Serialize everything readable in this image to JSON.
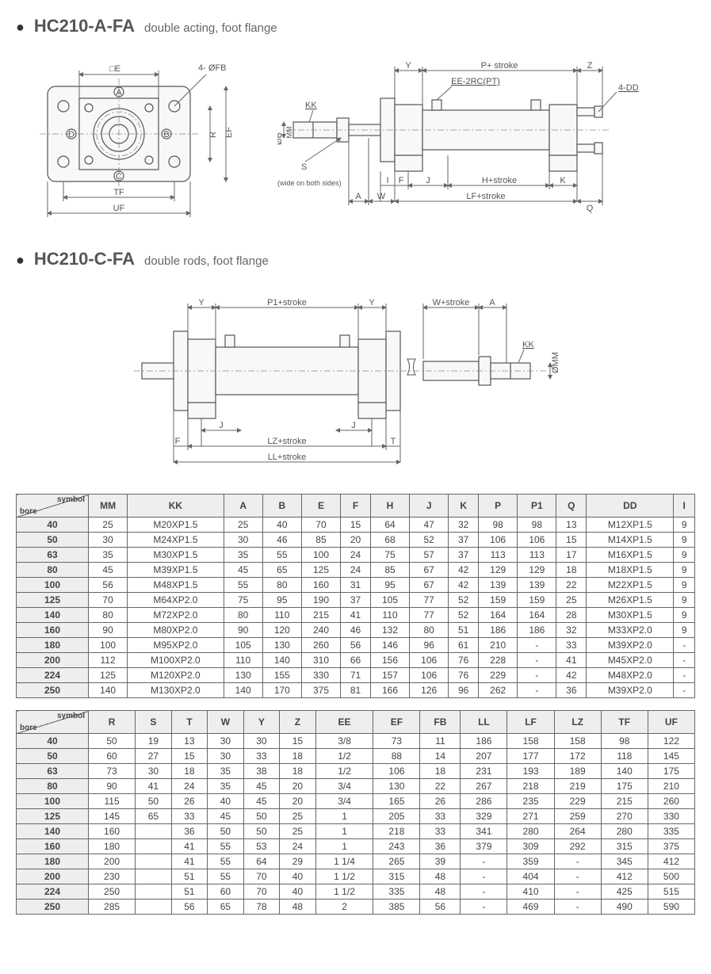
{
  "section1": {
    "model": "HC210-A-FA",
    "subtitle": "double acting, foot flange",
    "diag1_labels": {
      "E": "□E",
      "FB": "4- ØFB",
      "A": "A",
      "B": "B",
      "C": "C",
      "D": "D",
      "R": "R",
      "EF": "EF",
      "TF": "TF",
      "UF": "UF"
    },
    "diag2_labels": {
      "Y": "Y",
      "P": "P+ stroke",
      "Z": "Z",
      "EE": "EE-2RC(PT)",
      "DD": "4-DD",
      "KK": "KK",
      "B": "ØB",
      "MM": "MM",
      "S": "S",
      "wide": "(wide on both sides)",
      "I": "I",
      "F": "F",
      "J": "J",
      "H": "H+stroke",
      "K": "K",
      "A": "A",
      "W": "W",
      "LF": "LF+stroke",
      "Q": "Q"
    }
  },
  "section2": {
    "model": "HC210-C-FA",
    "subtitle": "double rods, foot flange",
    "labels": {
      "Y": "Y",
      "P1": "P1+stroke",
      "W": "W+stroke",
      "A": "A",
      "KK": "KK",
      "MM": "ØMM",
      "J": "J",
      "F": "F",
      "T": "T",
      "LZ": "LZ+stroke",
      "LL": "LL+stroke"
    }
  },
  "table1": {
    "header_top": "symbol",
    "header_bot": "bore",
    "columns": [
      "MM",
      "KK",
      "A",
      "B",
      "E",
      "F",
      "H",
      "J",
      "K",
      "P",
      "P1",
      "Q",
      "DD",
      "I"
    ],
    "rows": [
      [
        "40",
        "25",
        "M20XP1.5",
        "25",
        "40",
        "70",
        "15",
        "64",
        "47",
        "32",
        "98",
        "98",
        "13",
        "M12XP1.5",
        "9"
      ],
      [
        "50",
        "30",
        "M24XP1.5",
        "30",
        "46",
        "85",
        "20",
        "68",
        "52",
        "37",
        "106",
        "106",
        "15",
        "M14XP1.5",
        "9"
      ],
      [
        "63",
        "35",
        "M30XP1.5",
        "35",
        "55",
        "100",
        "24",
        "75",
        "57",
        "37",
        "113",
        "113",
        "17",
        "M16XP1.5",
        "9"
      ],
      [
        "80",
        "45",
        "M39XP1.5",
        "45",
        "65",
        "125",
        "24",
        "85",
        "67",
        "42",
        "129",
        "129",
        "18",
        "M18XP1.5",
        "9"
      ],
      [
        "100",
        "56",
        "M48XP1.5",
        "55",
        "80",
        "160",
        "31",
        "95",
        "67",
        "42",
        "139",
        "139",
        "22",
        "M22XP1.5",
        "9"
      ],
      [
        "125",
        "70",
        "M64XP2.0",
        "75",
        "95",
        "190",
        "37",
        "105",
        "77",
        "52",
        "159",
        "159",
        "25",
        "M26XP1.5",
        "9"
      ],
      [
        "140",
        "80",
        "M72XP2.0",
        "80",
        "110",
        "215",
        "41",
        "110",
        "77",
        "52",
        "164",
        "164",
        "28",
        "M30XP1.5",
        "9"
      ],
      [
        "160",
        "90",
        "M80XP2.0",
        "90",
        "120",
        "240",
        "46",
        "132",
        "80",
        "51",
        "186",
        "186",
        "32",
        "M33XP2.0",
        "9"
      ],
      [
        "180",
        "100",
        "M95XP2.0",
        "105",
        "130",
        "260",
        "56",
        "146",
        "96",
        "61",
        "210",
        "-",
        "33",
        "M39XP2.0",
        "-"
      ],
      [
        "200",
        "112",
        "M100XP2.0",
        "110",
        "140",
        "310",
        "66",
        "156",
        "106",
        "76",
        "228",
        "-",
        "41",
        "M45XP2.0",
        "-"
      ],
      [
        "224",
        "125",
        "M120XP2.0",
        "130",
        "155",
        "330",
        "71",
        "157",
        "106",
        "76",
        "229",
        "-",
        "42",
        "M48XP2.0",
        "-"
      ],
      [
        "250",
        "140",
        "M130XP2.0",
        "140",
        "170",
        "375",
        "81",
        "166",
        "126",
        "96",
        "262",
        "-",
        "36",
        "M39XP2.0",
        "-"
      ]
    ]
  },
  "table2": {
    "header_top": "symbol",
    "header_bot": "bore",
    "columns": [
      "R",
      "S",
      "T",
      "W",
      "Y",
      "Z",
      "EE",
      "EF",
      "FB",
      "LL",
      "LF",
      "LZ",
      "TF",
      "UF"
    ],
    "rows": [
      [
        "40",
        "50",
        "19",
        "13",
        "30",
        "30",
        "15",
        "3/8",
        "73",
        "11",
        "186",
        "158",
        "158",
        "98",
        "122"
      ],
      [
        "50",
        "60",
        "27",
        "15",
        "30",
        "33",
        "18",
        "1/2",
        "88",
        "14",
        "207",
        "177",
        "172",
        "118",
        "145"
      ],
      [
        "63",
        "73",
        "30",
        "18",
        "35",
        "38",
        "18",
        "1/2",
        "106",
        "18",
        "231",
        "193",
        "189",
        "140",
        "175"
      ],
      [
        "80",
        "90",
        "41",
        "24",
        "35",
        "45",
        "20",
        "3/4",
        "130",
        "22",
        "267",
        "218",
        "219",
        "175",
        "210"
      ],
      [
        "100",
        "115",
        "50",
        "26",
        "40",
        "45",
        "20",
        "3/4",
        "165",
        "26",
        "286",
        "235",
        "229",
        "215",
        "260"
      ],
      [
        "125",
        "145",
        "65",
        "33",
        "45",
        "50",
        "25",
        "1",
        "205",
        "33",
        "329",
        "271",
        "259",
        "270",
        "330"
      ],
      [
        "140",
        "160",
        "",
        "36",
        "50",
        "50",
        "25",
        "1",
        "218",
        "33",
        "341",
        "280",
        "264",
        "280",
        "335"
      ],
      [
        "160",
        "180",
        "",
        "41",
        "55",
        "53",
        "24",
        "1",
        "243",
        "36",
        "379",
        "309",
        "292",
        "315",
        "375"
      ],
      [
        "180",
        "200",
        "",
        "41",
        "55",
        "64",
        "29",
        "1 1/4",
        "265",
        "39",
        "-",
        "359",
        "-",
        "345",
        "412"
      ],
      [
        "200",
        "230",
        "",
        "51",
        "55",
        "70",
        "40",
        "1 1/2",
        "315",
        "48",
        "-",
        "404",
        "-",
        "412",
        "500"
      ],
      [
        "224",
        "250",
        "",
        "51",
        "60",
        "70",
        "40",
        "1 1/2",
        "335",
        "48",
        "-",
        "410",
        "-",
        "425",
        "515"
      ],
      [
        "250",
        "285",
        "",
        "56",
        "65",
        "78",
        "48",
        "2",
        "385",
        "56",
        "-",
        "469",
        "-",
        "490",
        "590"
      ]
    ]
  }
}
